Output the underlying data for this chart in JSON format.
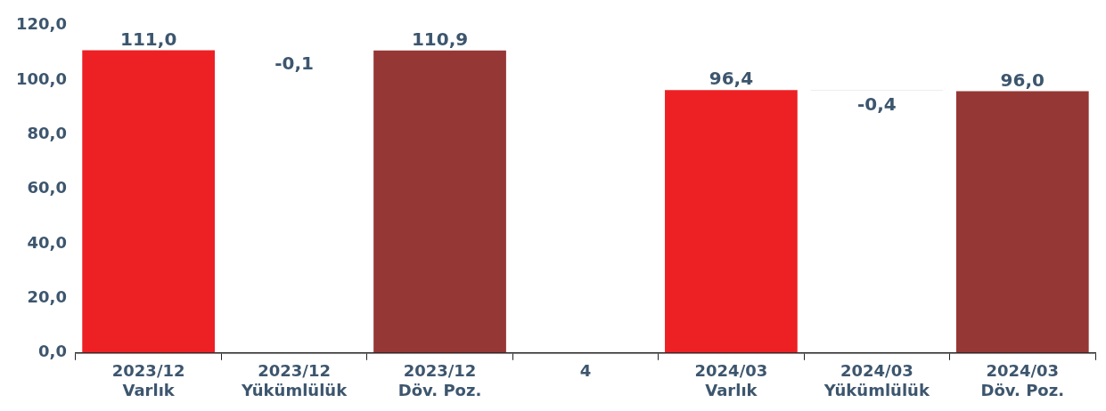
{
  "chart_data": {
    "type": "bar",
    "categories": [
      "2023/12\nVarlık",
      "2023/12\nYükümlülük",
      "2023/12\nDöv. Poz.",
      "4",
      "2024/03\nVarlık",
      "2024/03\nYükümlülük",
      "2024/03\nDöv. Poz."
    ],
    "values": [
      111.0,
      -0.1,
      110.9,
      null,
      96.4,
      -0.4,
      96.0
    ],
    "base": [
      0,
      111.0,
      0,
      null,
      0,
      96.4,
      0
    ],
    "colors": [
      "#ed2024",
      "#ffffff",
      "#953735",
      "#ffffff",
      "#ed2024",
      "#ffffff",
      "#953735"
    ],
    "value_labels": [
      "111,0",
      "-0,1",
      "110,9",
      null,
      "96,4",
      "-0,4",
      "96,0"
    ],
    "ylim": [
      0,
      120
    ],
    "yticks": [
      {
        "value": 0,
        "label": "0,0"
      },
      {
        "value": 20,
        "label": "20,0"
      },
      {
        "value": 40,
        "label": "40,0"
      },
      {
        "value": 60,
        "label": "60,0"
      },
      {
        "value": 80,
        "label": "80,0"
      },
      {
        "value": 100,
        "label": "100,0"
      },
      {
        "value": 120,
        "label": "120,0"
      }
    ],
    "grid": false,
    "legend": false
  }
}
